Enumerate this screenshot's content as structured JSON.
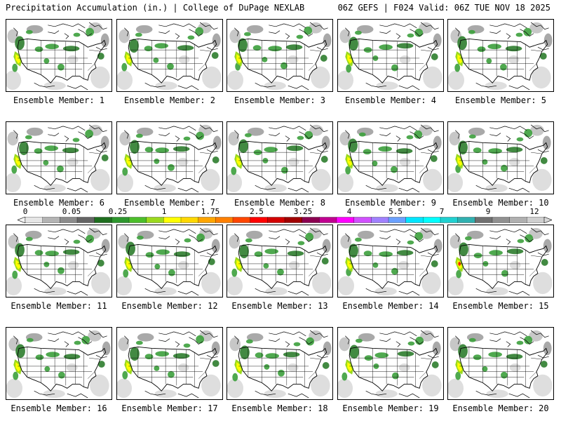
{
  "header": {
    "title": "Precipitation Accumulation (in.) | College of DuPage NEXLAB",
    "run_info": "06Z GEFS | F024 Valid: 06Z TUE NOV 18 2025"
  },
  "colorbar": {
    "labels": [
      "0",
      "0.05",
      "0.25",
      "1",
      "1.75",
      "2.5",
      "3.25",
      "4",
      "5.5",
      "7",
      "9",
      "12"
    ],
    "colors": [
      "#e6e6e6",
      "#b4b4b4",
      "#8c8c8c",
      "#646464",
      "#1e6e1e",
      "#2d962d",
      "#4cbe2a",
      "#9bd91e",
      "#ffff00",
      "#ffd700",
      "#ffa500",
      "#ff7f00",
      "#ff4500",
      "#ff0000",
      "#d20000",
      "#a00000",
      "#8b0050",
      "#c00090",
      "#ff00ff",
      "#d050ff",
      "#a080ff",
      "#6aa0ff",
      "#00e5ff",
      "#00ffff",
      "#20d0d0",
      "#30b0b0",
      "#707070",
      "#909090",
      "#b0b0b0",
      "#cfcfcf"
    ]
  },
  "panels": [
    {
      "label": "Ensemble Member: 1"
    },
    {
      "label": "Ensemble Member: 2"
    },
    {
      "label": "Ensemble Member: 3"
    },
    {
      "label": "Ensemble Member: 4"
    },
    {
      "label": "Ensemble Member: 5"
    },
    {
      "label": "Ensemble Member: 6"
    },
    {
      "label": "Ensemble Member: 7"
    },
    {
      "label": "Ensemble Member: 8"
    },
    {
      "label": "Ensemble Member: 9"
    },
    {
      "label": "Ensemble Member: 10"
    },
    {
      "label": "Ensemble Member: 11"
    },
    {
      "label": "Ensemble Member: 12"
    },
    {
      "label": "Ensemble Member: 13"
    },
    {
      "label": "Ensemble Member: 14"
    },
    {
      "label": "Ensemble Member: 15"
    },
    {
      "label": "Ensemble Member: 16"
    },
    {
      "label": "Ensemble Member: 17"
    },
    {
      "label": "Ensemble Member: 18"
    },
    {
      "label": "Ensemble Member: 19"
    },
    {
      "label": "Ensemble Member: 20"
    }
  ],
  "map_colors": {
    "ocean_gray": "#bdbdbd",
    "light_gray": "#d8d8d8",
    "mid_gray": "#9a9a9a",
    "green_dark": "#2e7d2e",
    "green": "#3ca03c",
    "lime": "#9bd91e",
    "yellow": "#ffff00",
    "red": "#ff3000"
  }
}
